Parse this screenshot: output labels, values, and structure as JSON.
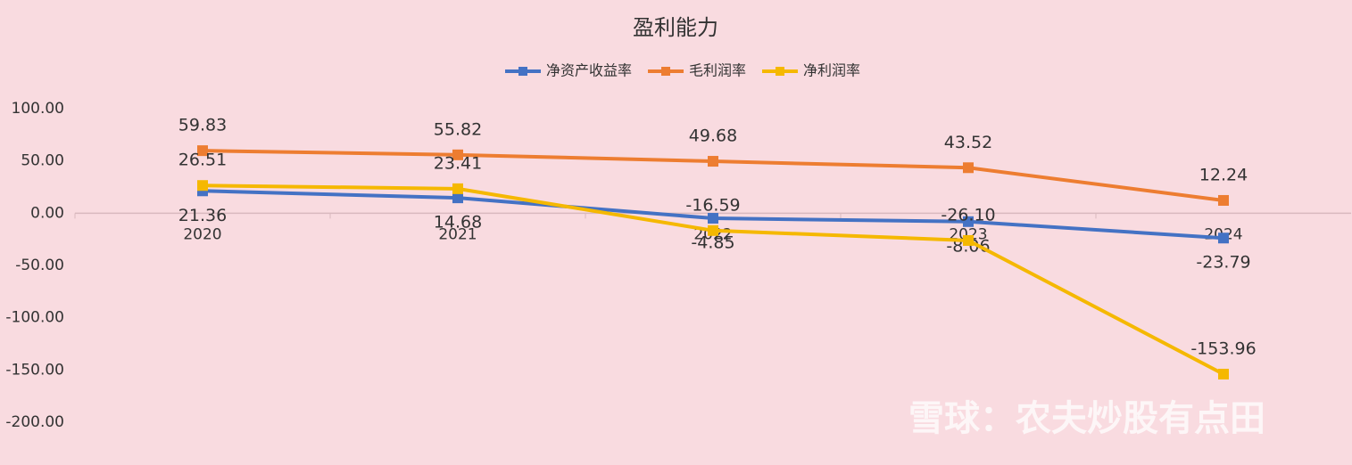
{
  "chart_data": {
    "type": "line",
    "title": "盈利能力",
    "categories": [
      "2020",
      "2021",
      "2022",
      "2023",
      "2024"
    ],
    "series": [
      {
        "name": "净资产收益率",
        "color": "#4472c4",
        "values": [
          21.36,
          14.68,
          -4.85,
          -8.06,
          -23.79
        ],
        "value_labels": [
          "21.36",
          "14.68",
          "-4.85",
          "-8.06",
          "-23.79"
        ]
      },
      {
        "name": "毛利润率",
        "color": "#ed7d31",
        "values": [
          59.83,
          55.82,
          49.68,
          43.52,
          12.24
        ],
        "value_labels": [
          "59.83",
          "55.82",
          "49.68",
          "43.52",
          "12.24"
        ]
      },
      {
        "name": "净利润率",
        "color": "#f5b800",
        "values": [
          26.51,
          23.41,
          -16.59,
          -26.1,
          -153.96
        ],
        "value_labels": [
          "26.51",
          "23.41",
          "-16.59",
          "-26.10",
          "-153.96"
        ]
      }
    ],
    "ylim": [
      -200,
      100
    ],
    "yticks": [
      {
        "value": -200,
        "label": "-200.00"
      },
      {
        "value": -150,
        "label": "-150.00"
      },
      {
        "value": -100,
        "label": "-100.00"
      },
      {
        "value": -50,
        "label": "-50.00"
      },
      {
        "value": 0,
        "label": "0.00"
      },
      {
        "value": 50,
        "label": "50.00"
      },
      {
        "value": 100,
        "label": "100.00"
      }
    ],
    "legend": "top",
    "watermark": "雪球：农夫炒股有点田"
  }
}
